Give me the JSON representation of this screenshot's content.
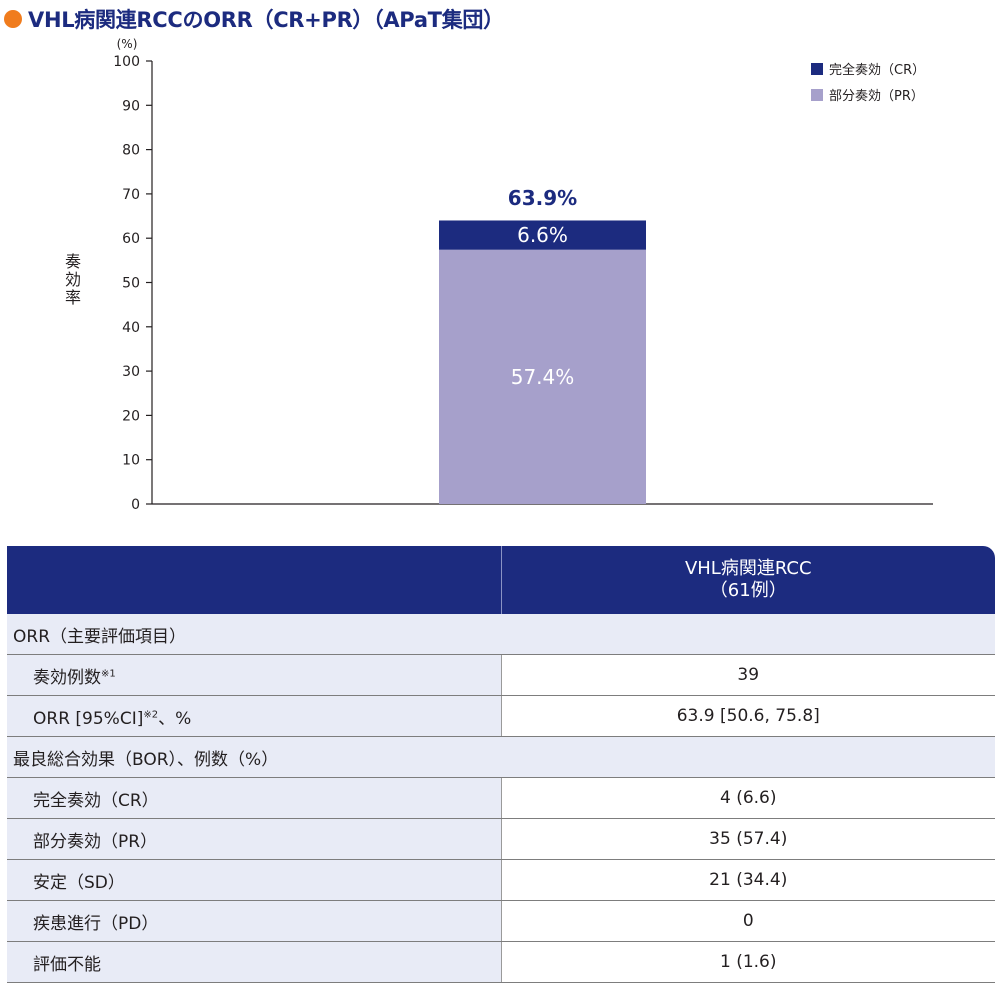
{
  "title": "VHL病関連RCCのORR（CR+PR）（APaT集団）",
  "chart_data": {
    "type": "bar",
    "stacked": true,
    "categories": [
      ""
    ],
    "series": [
      {
        "name": "部分奏効（PR）",
        "values": [
          57.4
        ],
        "color": "#a6a0cb",
        "label": "57.4%",
        "label_color": "#ffffff"
      },
      {
        "name": "完全奏効（CR）",
        "values": [
          6.6
        ],
        "color": "#1c2b7f",
        "label": "6.6%",
        "label_color": "#ffffff"
      }
    ],
    "total_label": "63.9%",
    "total_value": 63.9,
    "ylabel": "奏効率",
    "yunit": "(%)",
    "ylim": [
      0,
      100
    ],
    "yticks": [
      "0",
      "10",
      "20",
      "30",
      "40",
      "50",
      "60",
      "70",
      "80",
      "90",
      "100"
    ],
    "legend": [
      {
        "label": "完全奏効（CR）",
        "color": "#1c2b7f"
      },
      {
        "label": "部分奏効（PR）",
        "color": "#a6a0cb"
      }
    ],
    "legend_position": "top-right",
    "grid": false
  },
  "table": {
    "header_line1": "VHL病関連RCC",
    "header_line2": "（61例）",
    "section1": "ORR（主要評価項目）",
    "r1_label": "奏効例数",
    "r1_sup": "※1",
    "r1_value": "39",
    "r2_label_a": "ORR [95%CI]",
    "r2_sup": "※2",
    "r2_label_b": "、%",
    "r2_value": "63.9 [50.6, 75.8]",
    "section2": "最良総合効果（BOR）、例数（%）",
    "r3_label": "完全奏効（CR）",
    "r3_value": "4 (6.6)",
    "r4_label": "部分奏効（PR）",
    "r4_value": "35 (57.4)",
    "r5_label": "安定（SD）",
    "r5_value": "21 (34.4)",
    "r6_label": "疾患進行（PD）",
    "r6_value": "0",
    "r7_label": "評価不能",
    "r7_value": "1 (1.6)"
  }
}
